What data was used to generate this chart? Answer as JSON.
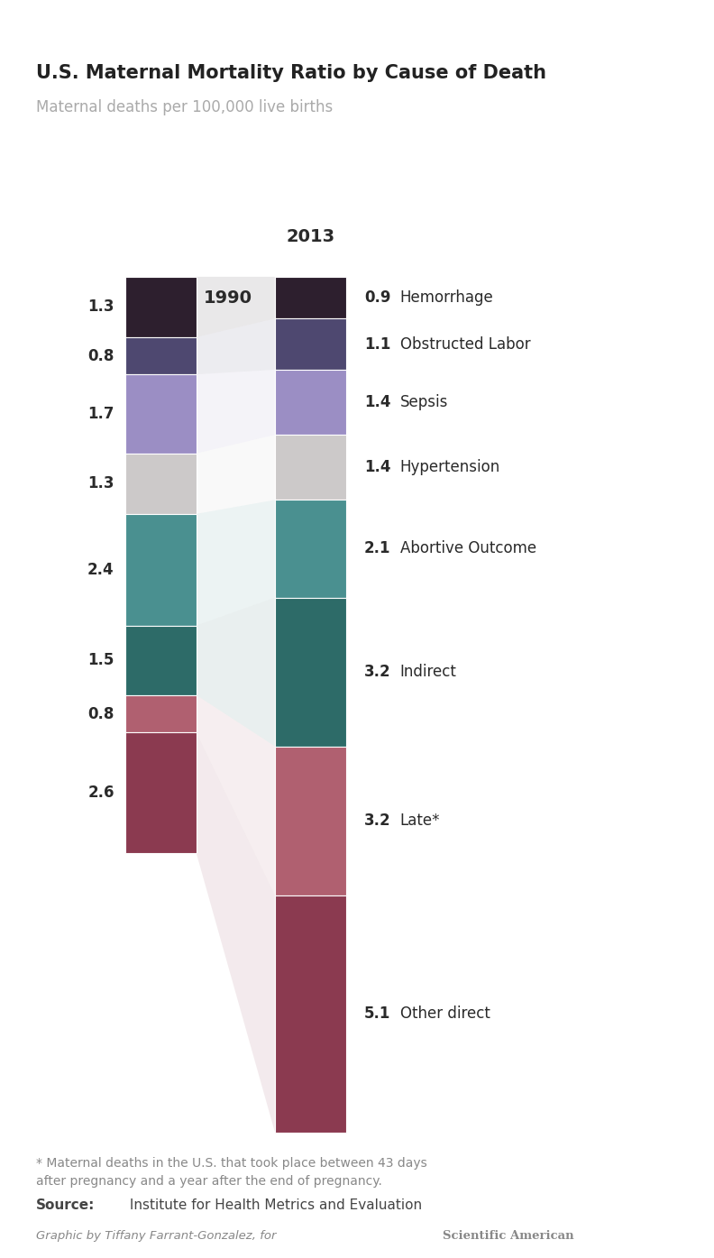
{
  "title": "U.S. Maternal Mortality Ratio by Cause of Death",
  "subtitle": "Maternal deaths per 100,000 live births",
  "categories": [
    "Hemorrhage",
    "Obstructed Labor",
    "Sepsis",
    "Hypertension",
    "Abortive Outcome",
    "Indirect",
    "Late*",
    "Other direct"
  ],
  "colors": [
    "#2d1f2e",
    "#4e4870",
    "#9b8ec4",
    "#ccc9c9",
    "#4a9090",
    "#2d6b68",
    "#b06070",
    "#8b3a50"
  ],
  "values_1990": [
    1.3,
    0.8,
    1.7,
    1.3,
    2.4,
    1.5,
    0.8,
    2.6
  ],
  "values_2013": [
    0.9,
    1.1,
    1.4,
    1.4,
    2.1,
    3.2,
    3.2,
    5.1
  ],
  "year1": "1990",
  "year2": "2013",
  "footnote": "* Maternal deaths in the U.S. that took place between 43 days\nafter pregnancy and a year after the end of pregnancy.",
  "source_bold": "Source:",
  "source_text": " Institute for Health Metrics and Evaluation",
  "credit_italic": "Graphic by Tiffany Farrant-Gonzalez, for ",
  "credit_bold": "Scientific American",
  "bg_color": "#ffffff",
  "label_color": "#2a2a2a",
  "subtitle_color": "#aaaaaa",
  "footnote_color": "#888888",
  "source_color": "#444444",
  "credit_color": "#888888"
}
